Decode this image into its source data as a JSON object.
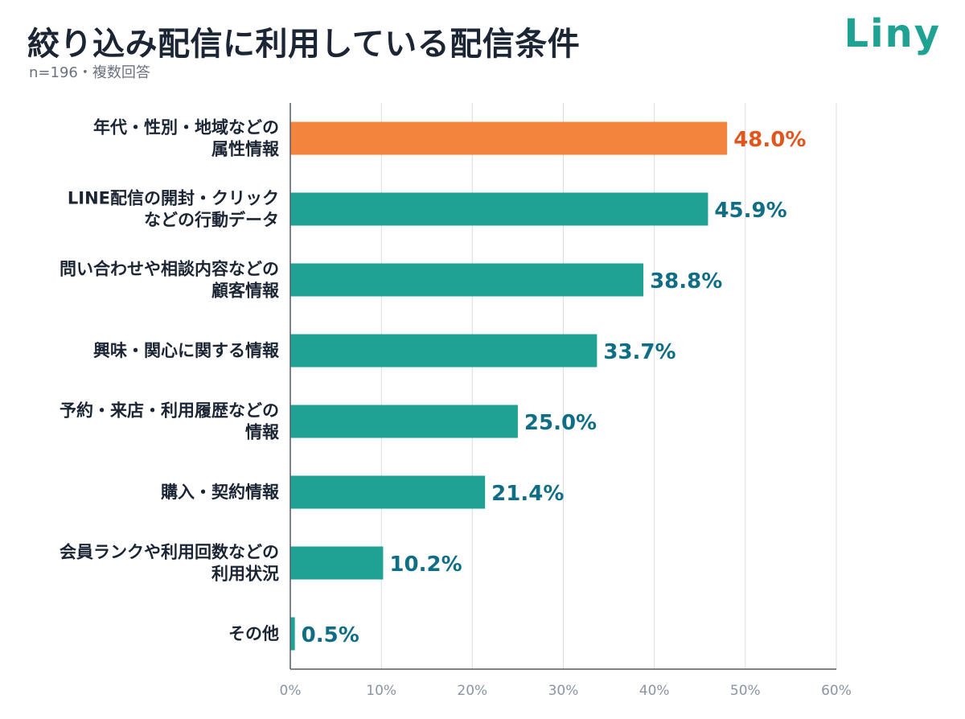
{
  "header": {
    "title": "絞り込み配信に利用している配信条件",
    "subtitle": "n=196・複数回答",
    "logo_text": "Liny"
  },
  "colors": {
    "highlight": "#F3843E",
    "highlight_label": "#E2561E",
    "bar": "#1FA294",
    "bar_label": "#0F6E86",
    "grid": "#d9dde3",
    "axis": "#555b66",
    "logo": "#1FA294"
  },
  "chart_data": {
    "type": "bar",
    "orientation": "horizontal",
    "title": "絞り込み配信に利用している配信条件",
    "subtitle": "n=196・複数回答",
    "categories": [
      [
        "年代・性別・地域などの",
        "属性情報"
      ],
      [
        "LINE配信の開封・クリック",
        "などの行動データ"
      ],
      [
        "問い合わせや相談内容などの",
        "顧客情報"
      ],
      [
        "興味・関心に関する情報"
      ],
      [
        "予約・来店・利用履歴などの",
        "情報"
      ],
      [
        "購入・契約情報"
      ],
      [
        "会員ランクや利用回数などの",
        "利用状況"
      ],
      [
        "その他"
      ]
    ],
    "values": [
      48.0,
      45.9,
      38.8,
      33.7,
      25.0,
      21.4,
      10.2,
      0.5
    ],
    "value_labels": [
      "48.0%",
      "45.9%",
      "38.8%",
      "33.7%",
      "25.0%",
      "21.4%",
      "10.2%",
      "0.5%"
    ],
    "highlight_index": 0,
    "xlim": [
      0,
      60
    ],
    "xticks": [
      0,
      10,
      20,
      30,
      40,
      50,
      60
    ],
    "xtick_labels": [
      "0%",
      "10%",
      "20%",
      "30%",
      "40%",
      "50%",
      "60%"
    ],
    "grid": true,
    "legend": "none"
  }
}
